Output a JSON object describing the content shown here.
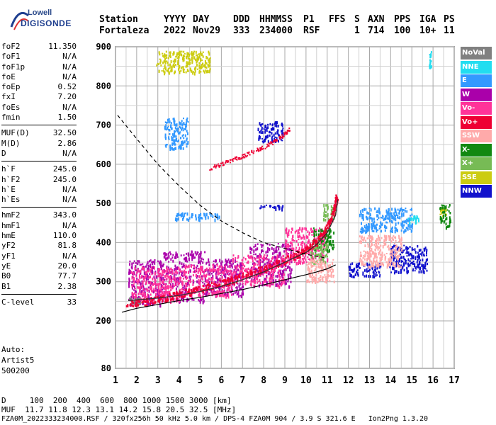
{
  "logo": {
    "line1": "Lowell",
    "line2": "DIGISONDE"
  },
  "header": {
    "labels": [
      "Station",
      "YYYY",
      "DAY",
      "DDD",
      "HHMMSS",
      "P1",
      "FFS",
      "S",
      "AXN",
      "PPS",
      "IGA",
      "PS"
    ],
    "values": [
      "Fortaleza",
      "2022",
      "Nov29",
      "333",
      "234000",
      "RSF",
      "1",
      "714",
      "100",
      "10+",
      "11"
    ]
  },
  "params": [
    {
      "label": "foF2",
      "value": "11.350"
    },
    {
      "label": "foF1",
      "value": "N/A"
    },
    {
      "label": "foF1p",
      "value": "N/A"
    },
    {
      "label": "foE",
      "value": "N/A"
    },
    {
      "label": "foEp",
      "value": "0.52"
    },
    {
      "label": "fxI",
      "value": "7.20"
    },
    {
      "label": "foEs",
      "value": "N/A"
    },
    {
      "label": "fmin",
      "value": "1.50"
    },
    {
      "sep": true
    },
    {
      "label": "MUF(D)",
      "value": "32.50"
    },
    {
      "label": "M(D)",
      "value": "2.86"
    },
    {
      "label": "D",
      "value": "N/A"
    },
    {
      "sep": true
    },
    {
      "label": "h`F",
      "value": "245.0"
    },
    {
      "label": "h`F2",
      "value": "245.0"
    },
    {
      "label": "h`E",
      "value": "N/A"
    },
    {
      "label": "h`Es",
      "value": "N/A"
    },
    {
      "sep": true
    },
    {
      "label": "hmF2",
      "value": "343.0"
    },
    {
      "label": "hmF1",
      "value": "N/A"
    },
    {
      "label": "hmE",
      "value": "110.0"
    },
    {
      "label": "yF2",
      "value": "81.8"
    },
    {
      "label": "yF1",
      "value": "N/A"
    },
    {
      "label": "yE",
      "value": "20.0"
    },
    {
      "label": "B0",
      "value": "77.7"
    },
    {
      "label": "B1",
      "value": "2.38"
    },
    {
      "sep": true
    },
    {
      "label": "C-level",
      "value": "33"
    }
  ],
  "auto": [
    "Auto:",
    "Artist5",
    "500200"
  ],
  "legend": [
    {
      "label": "NoVal",
      "color": "#808080"
    },
    {
      "label": "NNE",
      "color": "#22ddf0"
    },
    {
      "label": "E",
      "color": "#3399ff"
    },
    {
      "label": "W",
      "color": "#aa00aa"
    },
    {
      "label": "Vo-",
      "color": "#ff3399"
    },
    {
      "label": "Vo+",
      "color": "#ee0033"
    },
    {
      "label": "SSW",
      "color": "#ffaaaa"
    },
    {
      "label": "X-",
      "color": "#118811"
    },
    {
      "label": "X+",
      "color": "#77bb55"
    },
    {
      "label": "SSE",
      "color": "#cccc11"
    },
    {
      "label": "NNW",
      "color": "#1111cc"
    }
  ],
  "footer": {
    "line1": "D     100  200  400  600  800 1000 1500 3000 [km]",
    "line2": "MUF  11.7 11.8 12.3 13.1 14.2 15.8 20.5 32.5 [MHz]",
    "line3": "FZA0M_2022333234000.RSF / 320fx256h 50 kHz 5.0 km / DPS-4 FZA0M 904 / 3.9 S 321.6 E   Ion2Png 1.3.20"
  },
  "chart_data": {
    "type": "scatter",
    "xlim": [
      1,
      17
    ],
    "ylim": [
      80,
      900
    ],
    "xticks": [
      1,
      2,
      3,
      4,
      5,
      6,
      7,
      8,
      9,
      10,
      11,
      12,
      13,
      14,
      15,
      16,
      17
    ],
    "yticks": [
      80,
      200,
      300,
      400,
      500,
      600,
      700,
      800,
      900
    ],
    "grid": true,
    "legend_position": "right",
    "series": [
      {
        "name": "Vo+",
        "kind": "trace",
        "color": "#ee0033",
        "points": [
          [
            1.5,
            245
          ],
          [
            2.5,
            250
          ],
          [
            3.5,
            262
          ],
          [
            4.5,
            275
          ],
          [
            5.5,
            290
          ],
          [
            6.5,
            305
          ],
          [
            7.5,
            325
          ],
          [
            8.5,
            345
          ],
          [
            9.5,
            368
          ],
          [
            10.0,
            385
          ],
          [
            10.5,
            405
          ],
          [
            11.0,
            440
          ],
          [
            11.3,
            480
          ],
          [
            11.45,
            520
          ]
        ]
      },
      {
        "name": "W",
        "kind": "cluster",
        "color": "#aa00aa",
        "regions": [
          [
            1.6,
            3.2,
            240,
            360
          ],
          [
            3.2,
            5.2,
            250,
            380
          ],
          [
            5.2,
            7.0,
            265,
            360
          ],
          [
            7.3,
            9.3,
            290,
            400
          ]
        ]
      },
      {
        "name": "Vo-",
        "kind": "cluster",
        "color": "#ff3399",
        "regions": [
          [
            1.7,
            4.0,
            250,
            340
          ],
          [
            4.0,
            6.5,
            265,
            345
          ],
          [
            6.5,
            9.0,
            290,
            370
          ],
          [
            9.0,
            11.0,
            350,
            440
          ]
        ]
      },
      {
        "name": "NNW",
        "kind": "cluster",
        "color": "#1111cc",
        "regions": [
          [
            13.9,
            15.7,
            325,
            395
          ],
          [
            7.7,
            8.9,
            488,
            498
          ],
          [
            7.7,
            8.9,
            660,
            710
          ],
          [
            12.0,
            13.5,
            315,
            350
          ]
        ]
      },
      {
        "name": "E",
        "kind": "cluster",
        "color": "#3399ff",
        "regions": [
          [
            3.7,
            5.9,
            460,
            478
          ],
          [
            12.5,
            15.0,
            430,
            490
          ],
          [
            3.3,
            4.4,
            640,
            720
          ]
        ]
      },
      {
        "name": "NNE",
        "kind": "cluster",
        "color": "#22ddf0",
        "regions": [
          [
            14.8,
            15.3,
            450,
            470
          ],
          [
            15.8,
            15.9,
            850,
            890
          ]
        ]
      },
      {
        "name": "SSE",
        "kind": "cluster",
        "color": "#cccc11",
        "regions": [
          [
            2.9,
            5.5,
            835,
            890
          ],
          [
            16.3,
            16.6,
            470,
            490
          ]
        ]
      },
      {
        "name": "X-",
        "kind": "cluster",
        "color": "#118811",
        "regions": [
          [
            10.3,
            11.3,
            380,
            440
          ],
          [
            16.3,
            16.8,
            440,
            500
          ]
        ]
      },
      {
        "name": "X+",
        "kind": "cluster",
        "color": "#77bb55",
        "regions": [
          [
            10.2,
            11.0,
            350,
            400
          ],
          [
            10.8,
            11.4,
            460,
            500
          ]
        ]
      },
      {
        "name": "SSW",
        "kind": "cluster",
        "color": "#ffaaaa",
        "regions": [
          [
            10.0,
            11.3,
            300,
            360
          ],
          [
            12.5,
            14.5,
            340,
            420
          ]
        ]
      },
      {
        "name": "NoVal",
        "kind": "cluster",
        "color": "#808080",
        "regions": [
          [
            1.6,
            2.2,
            245,
            260
          ]
        ]
      }
    ],
    "reflection_layer": {
      "color": "#ee0033",
      "points": [
        [
          5.4,
          590
        ],
        [
          6.0,
          602
        ],
        [
          6.5,
          612
        ],
        [
          7.0,
          622
        ],
        [
          7.5,
          635
        ],
        [
          8.0,
          645
        ],
        [
          8.5,
          660
        ],
        [
          8.9,
          675
        ],
        [
          9.2,
          690
        ]
      ]
    },
    "profile_curve": {
      "style": "solid",
      "color": "#000000",
      "points": [
        [
          1.3,
          222
        ],
        [
          2,
          232
        ],
        [
          3,
          242
        ],
        [
          4,
          252
        ],
        [
          5,
          260
        ],
        [
          6,
          270
        ],
        [
          7,
          280
        ],
        [
          8,
          292
        ],
        [
          9,
          305
        ],
        [
          10,
          318
        ],
        [
          10.5,
          325
        ],
        [
          11,
          333
        ],
        [
          11.4,
          343
        ]
      ]
    },
    "model_trace": {
      "style": "solid",
      "color": "#333333",
      "points": [
        [
          1.6,
          252
        ],
        [
          3,
          258
        ],
        [
          4,
          265
        ],
        [
          5,
          275
        ],
        [
          6,
          288
        ],
        [
          7,
          305
        ],
        [
          8,
          325
        ],
        [
          9,
          350
        ],
        [
          10,
          375
        ],
        [
          10.5,
          395
        ],
        [
          11,
          425
        ],
        [
          11.4,
          470
        ],
        [
          11.5,
          510
        ]
      ]
    },
    "muf_curve": {
      "style": "dashed",
      "color": "#000000",
      "points": [
        [
          1.1,
          725
        ],
        [
          2,
          665
        ],
        [
          3,
          600
        ],
        [
          4,
          545
        ],
        [
          5,
          495
        ],
        [
          6,
          455
        ],
        [
          7,
          425
        ],
        [
          8,
          400
        ],
        [
          9,
          385
        ],
        [
          10,
          370
        ],
        [
          11,
          360
        ]
      ]
    }
  }
}
